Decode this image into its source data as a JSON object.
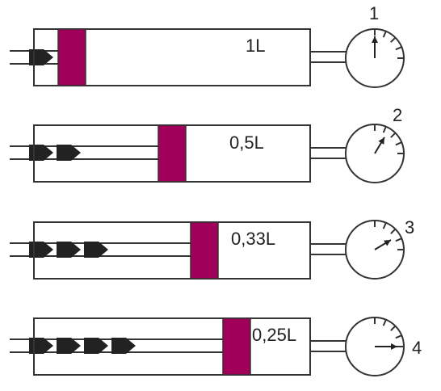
{
  "colors": {
    "piston": "#a0005a",
    "stroke": "#333333",
    "arrow": "#222222",
    "background": "#ffffff"
  },
  "rows": [
    {
      "volume_label": "1L",
      "gauge_number": "1",
      "force_arrows": 1,
      "gauge_reading": 1
    },
    {
      "volume_label": "0,5L",
      "gauge_number": "2",
      "force_arrows": 2,
      "gauge_reading": 2
    },
    {
      "volume_label": "0,33L",
      "gauge_number": "3",
      "force_arrows": 3,
      "gauge_reading": 3
    },
    {
      "volume_label": "0,25L",
      "gauge_number": "4",
      "force_arrows": 4,
      "gauge_reading": 4
    }
  ]
}
